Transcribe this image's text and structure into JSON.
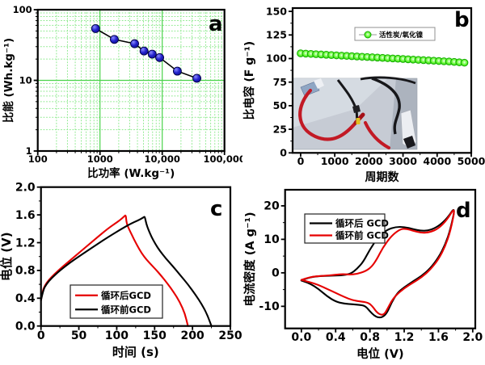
{
  "figure": {
    "background": "#ffffff",
    "panel_letters": [
      "a",
      "b",
      "c",
      "d"
    ]
  },
  "chart_data": [
    {
      "id": "a",
      "panel_label": "a",
      "type": "scatter",
      "xscale": "log",
      "yscale": "log",
      "xlim": [
        100,
        100000
      ],
      "ylim": [
        1,
        100
      ],
      "xlabel": "比功率 (W.kg⁻¹)",
      "ylabel": "比能 (Wh.kg⁻¹)",
      "xticks": [
        {
          "v": 100,
          "t": "100"
        },
        {
          "v": 1000,
          "t": "1000"
        },
        {
          "v": 10000,
          "t": "10,000"
        },
        {
          "v": 100000,
          "t": "100,000"
        }
      ],
      "yticks": [
        {
          "v": 1,
          "t": "1"
        },
        {
          "v": 10,
          "t": "10"
        },
        {
          "v": 100,
          "t": "100"
        }
      ],
      "grid": {
        "show": true,
        "major_color": "#4ad34a",
        "minor_color": "#8ce98c"
      },
      "series": [
        {
          "name": "Ragone",
          "marker": "ball",
          "color": "#2222cc",
          "edge_color": "#000042",
          "line_color": "#000000",
          "points": [
            [
              850,
              54
            ],
            [
              1700,
              38
            ],
            [
              3600,
              33
            ],
            [
              5100,
              26
            ],
            [
              6900,
              23.5
            ],
            [
              9100,
              21
            ],
            [
              17500,
              13.5
            ],
            [
              36000,
              10.7
            ]
          ]
        }
      ]
    },
    {
      "id": "b",
      "panel_label": "b",
      "type": "line-scatter",
      "xscale": "linear",
      "yscale": "linear",
      "xlim": [
        -235,
        5000
      ],
      "ylim": [
        0,
        153.5
      ],
      "xlabel": "周期数",
      "ylabel": "比电容 (F g⁻¹)",
      "xticks": [
        {
          "v": 0,
          "t": "0"
        },
        {
          "v": 1000,
          "t": "1000"
        },
        {
          "v": 2000,
          "t": "2000"
        },
        {
          "v": 3000,
          "t": "3000"
        },
        {
          "v": 4000,
          "t": "4000"
        },
        {
          "v": 5000,
          "t": "5000"
        }
      ],
      "yticks": [
        {
          "v": 0,
          "t": "0"
        },
        {
          "v": 25,
          "t": "25"
        },
        {
          "v": 50,
          "t": "50"
        },
        {
          "v": 75,
          "t": "75"
        },
        {
          "v": 100,
          "t": "100"
        },
        {
          "v": 125,
          "t": "125"
        },
        {
          "v": 150,
          "t": "150"
        }
      ],
      "legend": {
        "items": [
          {
            "label": "活性炭/氧化镍",
            "color": "#2ae000",
            "marker": "donut"
          }
        ]
      },
      "series": [
        {
          "name": "活性炭/氧化镍",
          "marker": "donut",
          "color": "#2ae000",
          "edge_color": "#14ad00",
          "line_color": "#2ae000",
          "points": [
            [
              0,
              105.5
            ],
            [
              150,
              105.2
            ],
            [
              300,
              104.9
            ],
            [
              450,
              104.6
            ],
            [
              600,
              104.3
            ],
            [
              750,
              104.0
            ],
            [
              900,
              103.7
            ],
            [
              1050,
              103.4
            ],
            [
              1200,
              103.1
            ],
            [
              1350,
              102.8
            ],
            [
              1500,
              102.5
            ],
            [
              1650,
              102.2
            ],
            [
              1800,
              101.9
            ],
            [
              1950,
              101.6
            ],
            [
              2100,
              101.3
            ],
            [
              2250,
              101.0
            ],
            [
              2400,
              100.7
            ],
            [
              2550,
              100.4
            ],
            [
              2700,
              100.1
            ],
            [
              2850,
              99.8
            ],
            [
              3000,
              99.5
            ],
            [
              3150,
              99.2
            ],
            [
              3300,
              98.9
            ],
            [
              3450,
              98.6
            ],
            [
              3600,
              98.3
            ],
            [
              3750,
              98.0
            ],
            [
              3900,
              97.7
            ],
            [
              4050,
              97.4
            ],
            [
              4200,
              97.1
            ],
            [
              4350,
              96.8
            ],
            [
              4500,
              96.4
            ],
            [
              4650,
              96.0
            ],
            [
              4800,
              95.6
            ]
          ]
        }
      ],
      "inset_photo": {
        "bg": "#c6cbd4",
        "sheet": "#dde3ea",
        "shadow": "#98a0ab",
        "cable_red": "#c21a25",
        "clip_red": "#a51018",
        "cable_black": "#17171a",
        "connector_yellow": "#e2c020",
        "strip_silver": "#eceef2",
        "electrode_blue": "#8fa6c4"
      }
    },
    {
      "id": "c",
      "panel_label": "c",
      "type": "line",
      "xscale": "linear",
      "yscale": "linear",
      "xlim": [
        0,
        250
      ],
      "ylim": [
        0,
        2.0
      ],
      "xlabel": "时间 (s)",
      "ylabel": "电位 (V)",
      "xticks": [
        {
          "v": 0,
          "t": "0"
        },
        {
          "v": 50,
          "t": "50"
        },
        {
          "v": 100,
          "t": "100"
        },
        {
          "v": 150,
          "t": "150"
        },
        {
          "v": 200,
          "t": "200"
        },
        {
          "v": 250,
          "t": "250"
        }
      ],
      "yticks": [
        {
          "v": 0,
          "t": "0.0"
        },
        {
          "v": 0.4,
          "t": "0.4"
        },
        {
          "v": 0.8,
          "t": "0.8"
        },
        {
          "v": 1.2,
          "t": "1.2"
        },
        {
          "v": 1.6,
          "t": "1.6"
        },
        {
          "v": 2.0,
          "t": "2.0"
        }
      ],
      "legend": {
        "items": [
          {
            "label": "循环后GCD",
            "color": "#e60000"
          },
          {
            "label": "循环前GCD",
            "color": "#000000"
          }
        ]
      },
      "series": [
        {
          "name": "循环后GCD",
          "color": "#e60000",
          "points": [
            [
              0,
              0.37
            ],
            [
              2,
              0.5
            ],
            [
              5,
              0.58
            ],
            [
              10,
              0.66
            ],
            [
              18,
              0.75
            ],
            [
              28,
              0.85
            ],
            [
              40,
              0.96
            ],
            [
              52,
              1.07
            ],
            [
              65,
              1.19
            ],
            [
              78,
              1.31
            ],
            [
              88,
              1.4
            ],
            [
              97,
              1.47
            ],
            [
              105,
              1.53
            ],
            [
              110,
              1.58
            ],
            [
              112,
              1.6
            ],
            [
              113,
              1.48
            ],
            [
              116,
              1.4
            ],
            [
              120,
              1.31
            ],
            [
              125,
              1.2
            ],
            [
              130,
              1.1
            ],
            [
              136,
              1.0
            ],
            [
              143,
              0.91
            ],
            [
              151,
              0.82
            ],
            [
              159,
              0.72
            ],
            [
              167,
              0.61
            ],
            [
              175,
              0.49
            ],
            [
              183,
              0.35
            ],
            [
              190,
              0.18
            ],
            [
              194,
              0
            ]
          ]
        },
        {
          "name": "循环前GCD",
          "color": "#000000",
          "points": [
            [
              0,
              0.37
            ],
            [
              3,
              0.52
            ],
            [
              7,
              0.6
            ],
            [
              14,
              0.69
            ],
            [
              24,
              0.79
            ],
            [
              38,
              0.91
            ],
            [
              54,
              1.03
            ],
            [
              72,
              1.16
            ],
            [
              90,
              1.29
            ],
            [
              105,
              1.39
            ],
            [
              118,
              1.47
            ],
            [
              128,
              1.52
            ],
            [
              135,
              1.56
            ],
            [
              137,
              1.58
            ],
            [
              139,
              1.47
            ],
            [
              142,
              1.38
            ],
            [
              146,
              1.28
            ],
            [
              151,
              1.18
            ],
            [
              157,
              1.08
            ],
            [
              165,
              0.97
            ],
            [
              174,
              0.86
            ],
            [
              184,
              0.73
            ],
            [
              194,
              0.6
            ],
            [
              204,
              0.45
            ],
            [
              213,
              0.3
            ],
            [
              220,
              0.15
            ],
            [
              225,
              0
            ]
          ]
        }
      ]
    },
    {
      "id": "d",
      "panel_label": "d",
      "type": "line",
      "xscale": "linear",
      "yscale": "linear",
      "xlim": [
        -0.19,
        2.03
      ],
      "ylim": [
        -16.6,
        24.8
      ],
      "xlabel": "电位 (V)",
      "ylabel": "电流密度 (A g⁻¹)",
      "xticks": [
        {
          "v": 0,
          "t": "0.0"
        },
        {
          "v": 0.4,
          "t": "0.4"
        },
        {
          "v": 0.8,
          "t": "0.8"
        },
        {
          "v": 1.2,
          "t": "1.2"
        },
        {
          "v": 1.6,
          "t": "1.6"
        },
        {
          "v": 2.0,
          "t": "2.0"
        }
      ],
      "yticks": [
        {
          "v": -10,
          "t": "-10"
        },
        {
          "v": 0,
          "t": "0"
        },
        {
          "v": 10,
          "t": "10"
        },
        {
          "v": 20,
          "t": "20"
        }
      ],
      "legend": {
        "items": [
          {
            "label": "循环后 GCD",
            "color": "#000000"
          },
          {
            "label": "循环前 GCD",
            "color": "#e60000"
          }
        ]
      },
      "series": [
        {
          "name": "循环后 GCD",
          "color": "#000000",
          "points": [
            [
              0,
              -2.3
            ],
            [
              0.08,
              -1.4
            ],
            [
              0.2,
              -1.0
            ],
            [
              0.35,
              -0.85
            ],
            [
              0.5,
              -0.7
            ],
            [
              0.58,
              -0.2
            ],
            [
              0.65,
              1.2
            ],
            [
              0.72,
              3.2
            ],
            [
              0.8,
              7.0
            ],
            [
              0.9,
              10.8
            ],
            [
              1.0,
              12.9
            ],
            [
              1.1,
              13.7
            ],
            [
              1.2,
              13.7
            ],
            [
              1.3,
              13.1
            ],
            [
              1.4,
              12.5
            ],
            [
              1.5,
              12.7
            ],
            [
              1.6,
              13.9
            ],
            [
              1.7,
              16.2
            ],
            [
              1.8,
              20.0
            ],
            [
              1.74,
              13.0
            ],
            [
              1.68,
              8.5
            ],
            [
              1.6,
              4.5
            ],
            [
              1.5,
              1.2
            ],
            [
              1.4,
              -1.0
            ],
            [
              1.3,
              -2.6
            ],
            [
              1.2,
              -4.3
            ],
            [
              1.12,
              -6.0
            ],
            [
              1.05,
              -9.0
            ],
            [
              1.0,
              -12.0
            ],
            [
              0.95,
              -13.2
            ],
            [
              0.9,
              -13.4
            ],
            [
              0.85,
              -12.8
            ],
            [
              0.8,
              -11.5
            ],
            [
              0.75,
              -10.0
            ],
            [
              0.7,
              -9.6
            ],
            [
              0.6,
              -9.4
            ],
            [
              0.5,
              -9.2
            ],
            [
              0.4,
              -8.6
            ],
            [
              0.3,
              -7.0
            ],
            [
              0.2,
              -4.8
            ],
            [
              0.1,
              -3.2
            ],
            [
              0,
              -2.3
            ]
          ]
        },
        {
          "name": "循环前 GCD",
          "color": "#e60000",
          "points": [
            [
              0,
              -2.1
            ],
            [
              0.1,
              -1.2
            ],
            [
              0.25,
              -0.9
            ],
            [
              0.4,
              -0.6
            ],
            [
              0.48,
              -0.35
            ],
            [
              0.56,
              -0.55
            ],
            [
              0.65,
              -0.35
            ],
            [
              0.75,
              0.5
            ],
            [
              0.82,
              1.8
            ],
            [
              0.88,
              4.0
            ],
            [
              0.95,
              7.5
            ],
            [
              1.05,
              11.0
            ],
            [
              1.15,
              13.0
            ],
            [
              1.22,
              13.2
            ],
            [
              1.3,
              12.6
            ],
            [
              1.4,
              11.9
            ],
            [
              1.5,
              12.1
            ],
            [
              1.6,
              13.2
            ],
            [
              1.7,
              15.8
            ],
            [
              1.8,
              20.0
            ],
            [
              1.74,
              12.5
            ],
            [
              1.68,
              8.0
            ],
            [
              1.6,
              4.0
            ],
            [
              1.5,
              0.8
            ],
            [
              1.4,
              -1.4
            ],
            [
              1.3,
              -3.0
            ],
            [
              1.2,
              -4.6
            ],
            [
              1.1,
              -6.8
            ],
            [
              1.05,
              -8.5
            ],
            [
              1.0,
              -11.0
            ],
            [
              0.97,
              -12.3
            ],
            [
              0.93,
              -12.6
            ],
            [
              0.88,
              -11.8
            ],
            [
              0.83,
              -10.0
            ],
            [
              0.78,
              -8.9
            ],
            [
              0.7,
              -8.6
            ],
            [
              0.6,
              -8.2
            ],
            [
              0.5,
              -7.2
            ],
            [
              0.4,
              -6.0
            ],
            [
              0.3,
              -4.8
            ],
            [
              0.2,
              -3.6
            ],
            [
              0.1,
              -2.8
            ],
            [
              0,
              -2.1
            ]
          ]
        }
      ]
    }
  ]
}
